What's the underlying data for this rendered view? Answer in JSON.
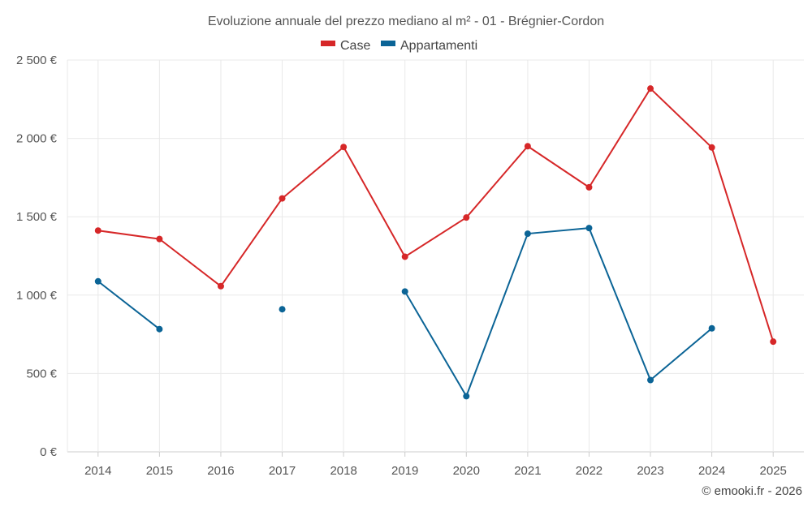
{
  "chart_data": {
    "type": "line",
    "title": "Evoluzione annuale del prezzo mediano al m² - 01 - Brégnier-Cordon",
    "categories": [
      "2014",
      "2015",
      "2016",
      "2017",
      "2018",
      "2019",
      "2020",
      "2021",
      "2022",
      "2023",
      "2024",
      "2025"
    ],
    "series": [
      {
        "name": "Case",
        "color": "#d62728",
        "values": [
          1412,
          1358,
          1057,
          1617,
          1945,
          1245,
          1495,
          1950,
          1688,
          2318,
          1942,
          703
        ]
      },
      {
        "name": "Appartamenti",
        "color": "#0b6496",
        "values": [
          1088,
          783,
          null,
          910,
          null,
          1023,
          355,
          1392,
          1428,
          458,
          788,
          null
        ]
      }
    ],
    "ylim": [
      0,
      2500
    ],
    "yticks": [
      0,
      500,
      1000,
      1500,
      2000,
      2500
    ],
    "ytick_labels": [
      "0 €",
      "500 €",
      "1 000 €",
      "1 500 €",
      "2 000 €",
      "2 500 €"
    ],
    "xlabel": "",
    "ylabel": "",
    "grid": true,
    "legend_position": "top-center"
  },
  "credit": "© emooki.fr - 2026"
}
